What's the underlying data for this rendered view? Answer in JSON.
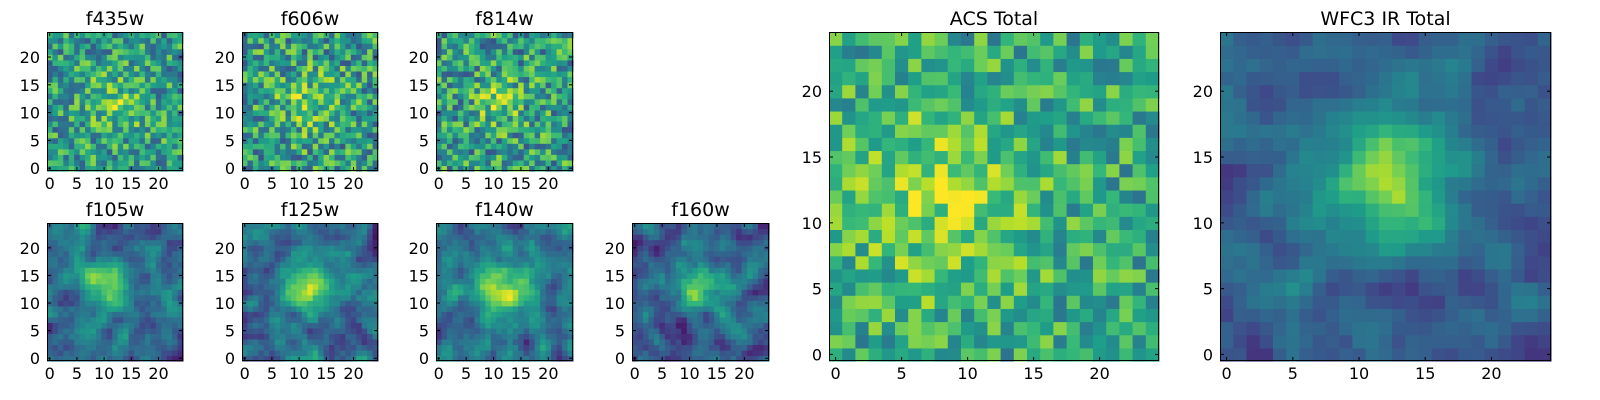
{
  "chart_data": [
    {
      "id": "f435w",
      "type": "heatmap",
      "title": "f435w",
      "grid_size": 25,
      "xlim": [
        0,
        24
      ],
      "ylim": [
        0,
        24
      ],
      "xticks": [
        0,
        5,
        10,
        15,
        20
      ],
      "yticks": [
        0,
        5,
        10,
        15,
        20
      ],
      "seed": 11,
      "blob_center": [
        12,
        12
      ],
      "blob_amplitude": 0.2,
      "blob_sigma": 4,
      "base_level": 0.55,
      "noise_amplitude": 0.55,
      "smoothing": 0
    },
    {
      "id": "f606w",
      "type": "heatmap",
      "title": "f606w",
      "grid_size": 25,
      "xlim": [
        0,
        24
      ],
      "ylim": [
        0,
        24
      ],
      "xticks": [
        0,
        5,
        10,
        15,
        20
      ],
      "yticks": [
        0,
        5,
        10,
        15,
        20
      ],
      "seed": 23,
      "blob_center": [
        12,
        12
      ],
      "blob_amplitude": 0.2,
      "blob_sigma": 4,
      "base_level": 0.55,
      "noise_amplitude": 0.6,
      "smoothing": 0
    },
    {
      "id": "f814w",
      "type": "heatmap",
      "title": "f814w",
      "grid_size": 25,
      "xlim": [
        0,
        24
      ],
      "ylim": [
        0,
        24
      ],
      "xticks": [
        0,
        5,
        10,
        15,
        20
      ],
      "yticks": [
        0,
        5,
        10,
        15,
        20
      ],
      "seed": 37,
      "blob_center": [
        11,
        12
      ],
      "blob_amplitude": 0.25,
      "blob_sigma": 3,
      "base_level": 0.55,
      "noise_amplitude": 0.6,
      "smoothing": 0
    },
    {
      "id": "f105w",
      "type": "heatmap",
      "title": "f105w",
      "grid_size": 25,
      "xlim": [
        0,
        24
      ],
      "ylim": [
        0,
        24
      ],
      "xticks": [
        0,
        5,
        10,
        15,
        20
      ],
      "yticks": [
        0,
        5,
        10,
        15,
        20
      ],
      "seed": 41,
      "blob_center": [
        11,
        13
      ],
      "blob_amplitude": 0.45,
      "blob_sigma": 3,
      "base_level": 0.35,
      "noise_amplitude": 0.5,
      "smoothing": 1
    },
    {
      "id": "f125w",
      "type": "heatmap",
      "title": "f125w",
      "grid_size": 25,
      "xlim": [
        0,
        24
      ],
      "ylim": [
        0,
        24
      ],
      "xticks": [
        0,
        5,
        10,
        15,
        20
      ],
      "yticks": [
        0,
        5,
        10,
        15,
        20
      ],
      "seed": 53,
      "blob_center": [
        12,
        13
      ],
      "blob_amplitude": 0.45,
      "blob_sigma": 3.5,
      "base_level": 0.35,
      "noise_amplitude": 0.5,
      "smoothing": 1
    },
    {
      "id": "f140w",
      "type": "heatmap",
      "title": "f140w",
      "grid_size": 25,
      "xlim": [
        0,
        24
      ],
      "ylim": [
        0,
        24
      ],
      "xticks": [
        0,
        5,
        10,
        15,
        20
      ],
      "yticks": [
        0,
        5,
        10,
        15,
        20
      ],
      "seed": 67,
      "blob_center": [
        12,
        13
      ],
      "blob_amplitude": 0.45,
      "blob_sigma": 3.5,
      "base_level": 0.38,
      "noise_amplitude": 0.5,
      "smoothing": 1
    },
    {
      "id": "f160w",
      "type": "heatmap",
      "title": "f160w",
      "grid_size": 25,
      "xlim": [
        0,
        24
      ],
      "ylim": [
        0,
        24
      ],
      "xticks": [
        0,
        5,
        10,
        15,
        20
      ],
      "yticks": [
        0,
        5,
        10,
        15,
        20
      ],
      "seed": 79,
      "blob_center": [
        12,
        13
      ],
      "blob_amplitude": 0.5,
      "blob_sigma": 3,
      "base_level": 0.3,
      "noise_amplitude": 0.5,
      "smoothing": 1
    },
    {
      "id": "acs-total",
      "type": "heatmap",
      "title": "ACS Total",
      "grid_size": 25,
      "xlim": [
        0,
        24
      ],
      "ylim": [
        0,
        24
      ],
      "xticks": [
        0,
        5,
        10,
        15,
        20
      ],
      "yticks": [
        0,
        5,
        10,
        15,
        20
      ],
      "seed": 97,
      "blob_center": [
        8,
        12
      ],
      "blob_amplitude": 0.25,
      "blob_sigma": 5,
      "base_level": 0.6,
      "noise_amplitude": 0.45,
      "smoothing": 0
    },
    {
      "id": "wfc3-ir-total",
      "type": "heatmap",
      "title": "WFC3 IR Total",
      "grid_size": 25,
      "xlim": [
        0,
        24
      ],
      "ylim": [
        0,
        24
      ],
      "xticks": [
        0,
        5,
        10,
        15,
        20
      ],
      "yticks": [
        0,
        5,
        10,
        15,
        20
      ],
      "seed": 131,
      "blob_center": [
        12,
        13
      ],
      "blob_amplitude": 0.55,
      "blob_sigma": 3.5,
      "base_level": 0.3,
      "noise_amplitude": 0.35,
      "smoothing": 1
    }
  ],
  "colormap": [
    "#440154",
    "#482878",
    "#3e4a89",
    "#31688e",
    "#26828e",
    "#1f9e89",
    "#35b779",
    "#6ece58",
    "#b5de2b",
    "#fde725"
  ]
}
